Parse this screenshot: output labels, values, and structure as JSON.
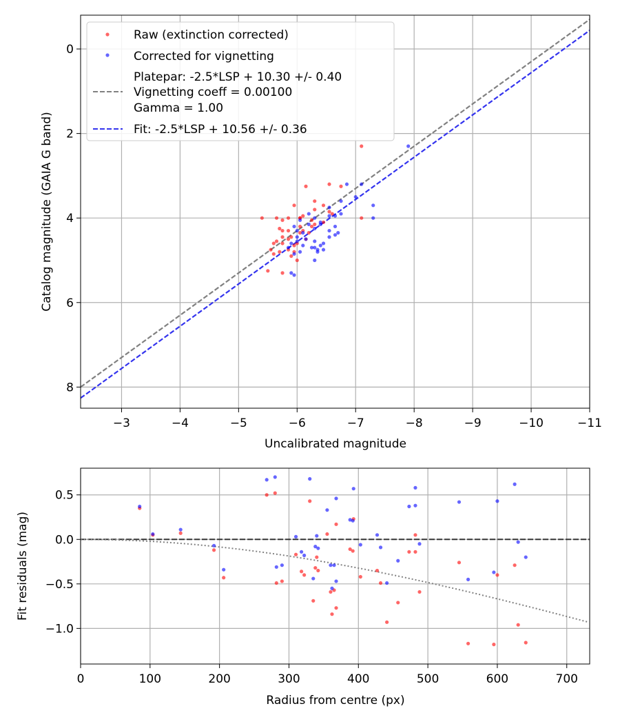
{
  "chart_data": [
    {
      "type": "scatter",
      "title": "",
      "xlabel": "Uncalibrated magnitude",
      "ylabel": "Catalog magnitude (GAIA G band)",
      "xlim": [
        -2.3,
        -11
      ],
      "ylim": [
        8.5,
        -0.8
      ],
      "x_ticks": [
        -3,
        -4,
        -5,
        -6,
        -7,
        -8,
        -9,
        -10,
        -11
      ],
      "x_tick_labels": [
        "−3",
        "−4",
        "−5",
        "−6",
        "−7",
        "−8",
        "−9",
        "−10",
        "−11"
      ],
      "y_ticks": [
        0,
        2,
        4,
        6,
        8
      ],
      "y_tick_labels": [
        "0",
        "2",
        "4",
        "6",
        "8"
      ],
      "grid": true,
      "legend_position": "top-left",
      "legend": [
        {
          "label": "Raw (extinction corrected)",
          "kind": "point",
          "color": "#ff0000"
        },
        {
          "label": "Corrected for vignetting",
          "kind": "point",
          "color": "#0000ff"
        },
        {
          "label": "Platepar: -2.5*LSP + 10.30 +/- 0.40",
          "label_line2": "Vignetting coeff = 0.00100",
          "label_line3": "Gamma = 1.00",
          "kind": "dashed-line",
          "color": "#808080"
        },
        {
          "label": "Fit: -2.5*LSP + 10.56 +/- 0.36",
          "kind": "dashed-line",
          "color": "#3333ee"
        }
      ],
      "lines": [
        {
          "name": "Platepar",
          "slope": 1.0,
          "intercept": 10.3,
          "color": "#808080"
        },
        {
          "name": "Fit",
          "slope": 1.0,
          "intercept": 10.56,
          "color": "#3333ee"
        }
      ],
      "series": [
        {
          "name": "Raw (extinction corrected)",
          "color": "#ff0000",
          "points": [
            [
              -7.1,
              2.3
            ],
            [
              -6.55,
              3.2
            ],
            [
              -6.15,
              3.25
            ],
            [
              -6.75,
              3.25
            ],
            [
              -6.3,
              3.6
            ],
            [
              -6.45,
              3.7
            ],
            [
              -5.95,
              3.7
            ],
            [
              -6.3,
              3.8
            ],
            [
              -6.55,
              3.85
            ],
            [
              -6.6,
              3.9
            ],
            [
              -6.1,
              3.95
            ],
            [
              -5.4,
              4.0
            ],
            [
              -5.65,
              4.0
            ],
            [
              -5.85,
              4.0
            ],
            [
              -6.05,
              4.0
            ],
            [
              -7.1,
              4.0
            ],
            [
              -5.75,
              4.05
            ],
            [
              -6.25,
              4.05
            ],
            [
              -6.45,
              4.1
            ],
            [
              -6.3,
              4.15
            ],
            [
              -6.05,
              4.2
            ],
            [
              -6.25,
              4.2
            ],
            [
              -5.7,
              4.25
            ],
            [
              -5.75,
              4.3
            ],
            [
              -5.85,
              4.3
            ],
            [
              -6.1,
              4.3
            ],
            [
              -6.05,
              4.35
            ],
            [
              -6.2,
              4.35
            ],
            [
              -5.75,
              4.45
            ],
            [
              -5.9,
              4.45
            ],
            [
              -5.85,
              4.5
            ],
            [
              -6.15,
              4.5
            ],
            [
              -5.65,
              4.55
            ],
            [
              -5.75,
              4.6
            ],
            [
              -5.6,
              4.6
            ],
            [
              -6.0,
              4.6
            ],
            [
              -5.95,
              4.65
            ],
            [
              -5.55,
              4.75
            ],
            [
              -5.85,
              4.75
            ],
            [
              -5.7,
              4.8
            ],
            [
              -5.95,
              4.8
            ],
            [
              -5.6,
              4.85
            ],
            [
              -5.9,
              4.9
            ],
            [
              -6.0,
              5.0
            ],
            [
              -5.5,
              5.25
            ],
            [
              -5.75,
              5.3
            ],
            [
              -6.05,
              4.0
            ]
          ]
        },
        {
          "name": "Corrected for vignetting",
          "color": "#0000ff",
          "points": [
            [
              -7.9,
              2.3
            ],
            [
              -7.1,
              3.2
            ],
            [
              -6.85,
              3.2
            ],
            [
              -7.0,
              3.5
            ],
            [
              -6.75,
              3.6
            ],
            [
              -7.3,
              3.7
            ],
            [
              -6.55,
              3.75
            ],
            [
              -6.75,
              3.9
            ],
            [
              -6.2,
              3.9
            ],
            [
              -6.65,
              3.95
            ],
            [
              -6.55,
              3.95
            ],
            [
              -7.3,
              4.0
            ],
            [
              -6.3,
              4.0
            ],
            [
              -6.05,
              4.05
            ],
            [
              -6.4,
              4.1
            ],
            [
              -6.2,
              4.15
            ],
            [
              -6.4,
              4.15
            ],
            [
              -6.65,
              4.2
            ],
            [
              -5.95,
              4.2
            ],
            [
              -6.0,
              4.3
            ],
            [
              -6.55,
              4.3
            ],
            [
              -6.1,
              4.35
            ],
            [
              -6.7,
              4.35
            ],
            [
              -6.65,
              4.4
            ],
            [
              -6.0,
              4.45
            ],
            [
              -6.15,
              4.5
            ],
            [
              -6.3,
              4.55
            ],
            [
              -6.45,
              4.6
            ],
            [
              -5.9,
              4.6
            ],
            [
              -6.4,
              4.65
            ],
            [
              -6.25,
              4.7
            ],
            [
              -6.3,
              4.7
            ],
            [
              -6.35,
              4.75
            ],
            [
              -6.45,
              4.75
            ],
            [
              -6.05,
              4.8
            ],
            [
              -6.35,
              4.8
            ],
            [
              -5.95,
              4.85
            ],
            [
              -6.3,
              5.0
            ],
            [
              -5.9,
              5.3
            ],
            [
              -5.95,
              5.35
            ],
            [
              -6.0,
              4.55
            ],
            [
              -6.1,
              4.65
            ],
            [
              -5.85,
              4.7
            ],
            [
              -6.55,
              4.45
            ],
            [
              -6.3,
              4.25
            ]
          ]
        }
      ]
    },
    {
      "type": "scatter",
      "title": "",
      "xlabel": "Radius from centre (px)",
      "ylabel": "Fit residuals (mag)",
      "xlim": [
        0,
        733
      ],
      "ylim": [
        -1.4,
        0.8
      ],
      "x_ticks": [
        0,
        100,
        200,
        300,
        400,
        500,
        600,
        700
      ],
      "x_tick_labels": [
        "0",
        "100",
        "200",
        "300",
        "400",
        "500",
        "600",
        "700"
      ],
      "y_ticks": [
        0.5,
        0.0,
        -0.5,
        -1.0
      ],
      "y_tick_labels": [
        "0.5",
        "0.0",
        "−0.5",
        "−1.0"
      ],
      "grid": true,
      "reference_line": {
        "y": 0.0,
        "color": "#333333"
      },
      "vignetting_curve": {
        "coeff": 0.001,
        "color": "#808080"
      },
      "series": [
        {
          "name": "Raw (extinction corrected)",
          "color": "#ff0000",
          "points": [
            [
              85,
              0.35
            ],
            [
              104,
              0.05
            ],
            [
              144,
              0.07
            ],
            [
              192,
              -0.12
            ],
            [
              206,
              -0.43
            ],
            [
              268,
              0.5
            ],
            [
              280,
              0.52
            ],
            [
              282,
              -0.49
            ],
            [
              290,
              -0.47
            ],
            [
              310,
              -0.17
            ],
            [
              318,
              -0.36
            ],
            [
              322,
              -0.4
            ],
            [
              330,
              0.43
            ],
            [
              335,
              -0.69
            ],
            [
              338,
              -0.32
            ],
            [
              342,
              -0.35
            ],
            [
              340,
              -0.2
            ],
            [
              355,
              0.06
            ],
            [
              360,
              -0.59
            ],
            [
              362,
              -0.84
            ],
            [
              365,
              -0.57
            ],
            [
              368,
              -0.77
            ],
            [
              368,
              0.17
            ],
            [
              388,
              -0.11
            ],
            [
              392,
              -0.13
            ],
            [
              393,
              0.23
            ],
            [
              403,
              -0.42
            ],
            [
              427,
              -0.35
            ],
            [
              432,
              -0.49
            ],
            [
              441,
              -0.93
            ],
            [
              457,
              -0.71
            ],
            [
              473,
              -0.14
            ],
            [
              482,
              0.05
            ],
            [
              482,
              -0.14
            ],
            [
              488,
              -0.59
            ],
            [
              545,
              -0.26
            ],
            [
              558,
              -1.17
            ],
            [
              595,
              -1.18
            ],
            [
              600,
              -0.4
            ],
            [
              625,
              -0.29
            ],
            [
              630,
              -0.96
            ],
            [
              641,
              -1.16
            ]
          ]
        },
        {
          "name": "Corrected for vignetting",
          "color": "#0000ff",
          "points": [
            [
              85,
              0.37
            ],
            [
              104,
              0.06
            ],
            [
              144,
              0.11
            ],
            [
              192,
              -0.07
            ],
            [
              206,
              -0.34
            ],
            [
              268,
              0.67
            ],
            [
              280,
              0.7
            ],
            [
              282,
              -0.31
            ],
            [
              290,
              -0.29
            ],
            [
              310,
              0.03
            ],
            [
              318,
              -0.14
            ],
            [
              322,
              -0.18
            ],
            [
              330,
              0.68
            ],
            [
              335,
              -0.44
            ],
            [
              338,
              -0.08
            ],
            [
              342,
              -0.1
            ],
            [
              340,
              0.04
            ],
            [
              355,
              0.33
            ],
            [
              360,
              -0.29
            ],
            [
              362,
              -0.55
            ],
            [
              365,
              -0.29
            ],
            [
              368,
              -0.47
            ],
            [
              368,
              0.46
            ],
            [
              388,
              0.22
            ],
            [
              392,
              0.21
            ],
            [
              393,
              0.57
            ],
            [
              403,
              -0.06
            ],
            [
              427,
              0.05
            ],
            [
              432,
              -0.09
            ],
            [
              441,
              -0.49
            ],
            [
              457,
              -0.24
            ],
            [
              473,
              0.37
            ],
            [
              482,
              0.58
            ],
            [
              482,
              0.38
            ],
            [
              488,
              -0.05
            ],
            [
              545,
              0.42
            ],
            [
              558,
              -0.45
            ],
            [
              595,
              -0.37
            ],
            [
              600,
              0.43
            ],
            [
              625,
              0.62
            ],
            [
              630,
              -0.03
            ],
            [
              641,
              -0.2
            ]
          ]
        }
      ]
    }
  ]
}
